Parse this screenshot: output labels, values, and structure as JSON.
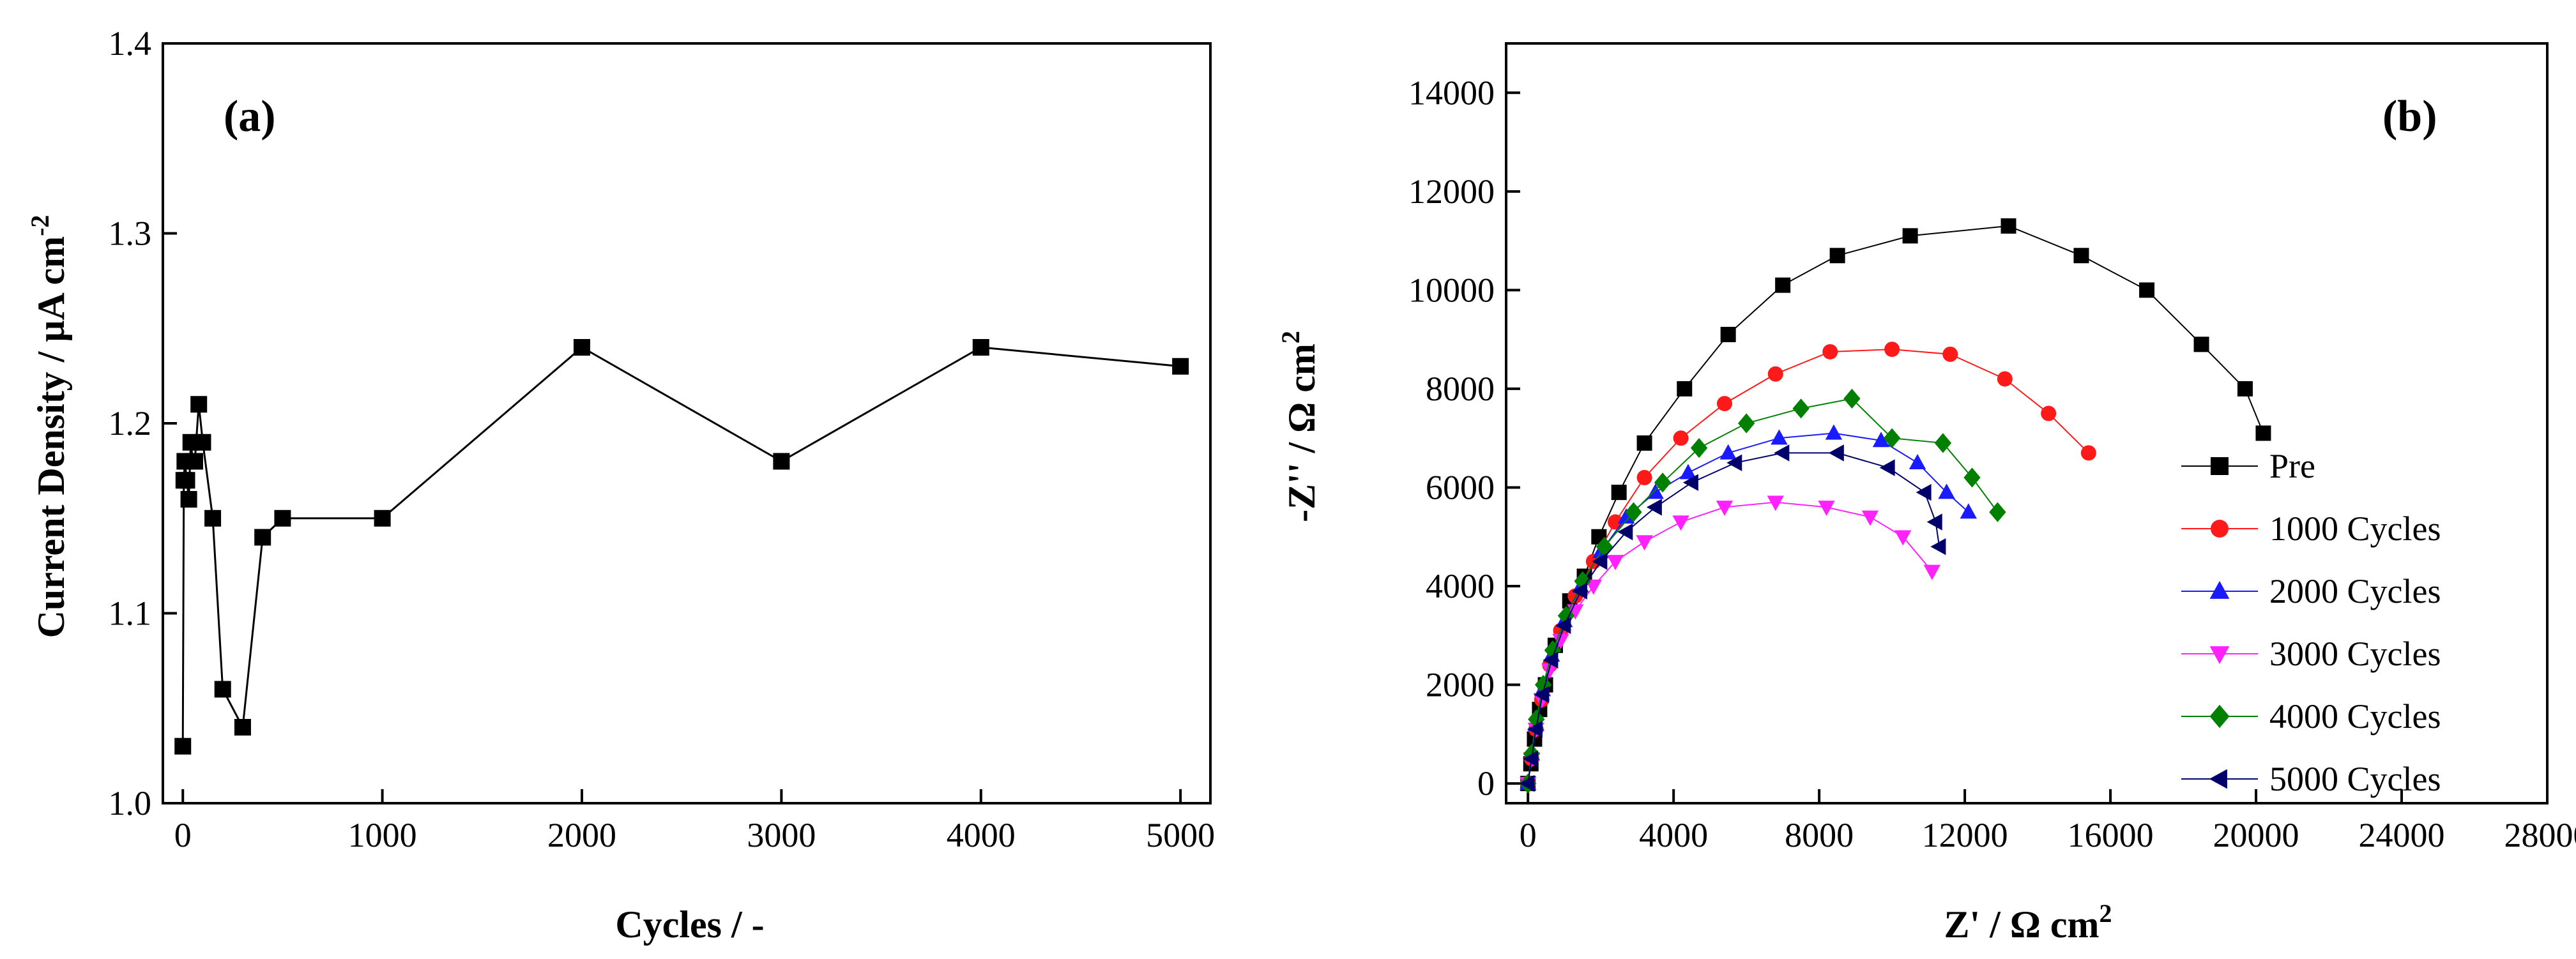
{
  "figure_title": "",
  "colors": {
    "pre": "#000000",
    "c1000": "#ff1a1a",
    "c2000": "#1a1aff",
    "c3000": "#ff22ff",
    "c4000": "#008000",
    "c5000": "#00006b"
  },
  "chart_data": [
    {
      "panel": "(a)",
      "type": "line",
      "title": "",
      "xlabel": "Cycles / -",
      "ylabel_main": "Current Density  / μA cm",
      "ylabel_sup": "-2",
      "xlim": [
        -100,
        5150
      ],
      "ylim": [
        1.0,
        1.4
      ],
      "xticks": [
        "0",
        "1000",
        "2000",
        "3000",
        "4000",
        "5000"
      ],
      "yticks": [
        "1.0",
        "1.1",
        "1.2",
        "1.3",
        "1.4"
      ],
      "grid": false,
      "marker": "square",
      "color": "#000000",
      "points": [
        {
          "x": 0,
          "y": 1.03
        },
        {
          "x": 5,
          "y": 1.17
        },
        {
          "x": 10,
          "y": 1.18
        },
        {
          "x": 20,
          "y": 1.17
        },
        {
          "x": 30,
          "y": 1.16
        },
        {
          "x": 40,
          "y": 1.19
        },
        {
          "x": 50,
          "y": 1.18
        },
        {
          "x": 60,
          "y": 1.18
        },
        {
          "x": 80,
          "y": 1.21
        },
        {
          "x": 100,
          "y": 1.19
        },
        {
          "x": 150,
          "y": 1.15
        },
        {
          "x": 200,
          "y": 1.06
        },
        {
          "x": 300,
          "y": 1.04
        },
        {
          "x": 400,
          "y": 1.14
        },
        {
          "x": 500,
          "y": 1.15
        },
        {
          "x": 1000,
          "y": 1.15
        },
        {
          "x": 2000,
          "y": 1.24
        },
        {
          "x": 3000,
          "y": 1.18
        },
        {
          "x": 4000,
          "y": 1.24
        },
        {
          "x": 5000,
          "y": 1.23
        }
      ]
    },
    {
      "panel": "(b)",
      "type": "scatter",
      "title": "",
      "xlabel_main": "Z' / Ω cm",
      "xlabel_sup": "2",
      "ylabel_main": "-Z'' / Ω cm",
      "ylabel_sup": "2",
      "xlim": [
        -600,
        28000
      ],
      "ylim": [
        -400,
        15000
      ],
      "xticks": [
        "0",
        "4000",
        "8000",
        "12000",
        "16000",
        "20000",
        "24000",
        "28000"
      ],
      "yticks": [
        "0",
        "2000",
        "4000",
        "6000",
        "8000",
        "10000",
        "12000",
        "14000"
      ],
      "grid": false,
      "legend_position": "right",
      "series": [
        {
          "name": "Pre",
          "marker": "square",
          "color_key": "pre",
          "points": [
            [
              0,
              0
            ],
            [
              80,
              400
            ],
            [
              180,
              900
            ],
            [
              320,
              1500
            ],
            [
              480,
              2000
            ],
            [
              750,
              2800
            ],
            [
              1150,
              3700
            ],
            [
              1550,
              4200
            ],
            [
              1950,
              5000
            ],
            [
              2500,
              5900
            ],
            [
              3200,
              6900
            ],
            [
              4300,
              8000
            ],
            [
              5500,
              9100
            ],
            [
              7000,
              10100
            ],
            [
              8500,
              10700
            ],
            [
              10500,
              11100
            ],
            [
              13200,
              11300
            ],
            [
              15200,
              10700
            ],
            [
              17000,
              10000
            ],
            [
              18500,
              8900
            ],
            [
              19700,
              8000
            ],
            [
              20200,
              7100
            ]
          ]
        },
        {
          "name": "1000 Cycles",
          "marker": "circle",
          "color_key": "c1000",
          "points": [
            [
              0,
              0
            ],
            [
              100,
              500
            ],
            [
              220,
              1100
            ],
            [
              380,
              1700
            ],
            [
              600,
              2400
            ],
            [
              900,
              3100
            ],
            [
              1300,
              3800
            ],
            [
              1800,
              4500
            ],
            [
              2400,
              5300
            ],
            [
              3200,
              6200
            ],
            [
              4200,
              7000
            ],
            [
              5400,
              7700
            ],
            [
              6800,
              8300
            ],
            [
              8300,
              8750
            ],
            [
              10000,
              8800
            ],
            [
              11600,
              8700
            ],
            [
              13100,
              8200
            ],
            [
              14300,
              7500
            ],
            [
              15400,
              6700
            ]
          ]
        },
        {
          "name": "2000 Cycles",
          "marker": "triangle-up",
          "color_key": "c2000",
          "points": [
            [
              0,
              0
            ],
            [
              100,
              600
            ],
            [
              220,
              1200
            ],
            [
              400,
              1900
            ],
            [
              650,
              2600
            ],
            [
              1000,
              3300
            ],
            [
              1450,
              4000
            ],
            [
              2000,
              4700
            ],
            [
              2700,
              5400
            ],
            [
              3500,
              5900
            ],
            [
              4400,
              6300
            ],
            [
              5500,
              6700
            ],
            [
              6900,
              7000
            ],
            [
              8400,
              7100
            ],
            [
              9700,
              6950
            ],
            [
              10700,
              6500
            ],
            [
              11500,
              5900
            ],
            [
              12100,
              5500
            ]
          ]
        },
        {
          "name": "3000 Cycles",
          "marker": "triangle-down",
          "color_key": "c3000",
          "points": [
            [
              0,
              0
            ],
            [
              100,
              500
            ],
            [
              220,
              1100
            ],
            [
              380,
              1700
            ],
            [
              600,
              2300
            ],
            [
              900,
              2900
            ],
            [
              1300,
              3500
            ],
            [
              1800,
              4000
            ],
            [
              2400,
              4500
            ],
            [
              3200,
              4900
            ],
            [
              4200,
              5300
            ],
            [
              5400,
              5600
            ],
            [
              6800,
              5700
            ],
            [
              8200,
              5600
            ],
            [
              9400,
              5400
            ],
            [
              10300,
              5000
            ],
            [
              11100,
              4300
            ]
          ]
        },
        {
          "name": "4000 Cycles",
          "marker": "diamond",
          "color_key": "c4000",
          "points": [
            [
              0,
              0
            ],
            [
              100,
              600
            ],
            [
              230,
              1300
            ],
            [
              420,
              2000
            ],
            [
              680,
              2700
            ],
            [
              1050,
              3400
            ],
            [
              1500,
              4100
            ],
            [
              2100,
              4800
            ],
            [
              2900,
              5500
            ],
            [
              3700,
              6100
            ],
            [
              4700,
              6800
            ],
            [
              6000,
              7300
            ],
            [
              7500,
              7600
            ],
            [
              8900,
              7800
            ],
            [
              10000,
              7000
            ],
            [
              11400,
              6900
            ],
            [
              12200,
              6200
            ],
            [
              12900,
              5500
            ]
          ]
        },
        {
          "name": "5000 Cycles",
          "marker": "triangle-left",
          "color_key": "c5000",
          "points": [
            [
              0,
              0
            ],
            [
              100,
              500
            ],
            [
              220,
              1100
            ],
            [
              400,
              1800
            ],
            [
              650,
              2500
            ],
            [
              1000,
              3200
            ],
            [
              1450,
              3900
            ],
            [
              2000,
              4500
            ],
            [
              2700,
              5100
            ],
            [
              3500,
              5600
            ],
            [
              4500,
              6100
            ],
            [
              5700,
              6500
            ],
            [
              7000,
              6700
            ],
            [
              8500,
              6700
            ],
            [
              9900,
              6400
            ],
            [
              10900,
              5900
            ],
            [
              11200,
              5300
            ],
            [
              11300,
              4800
            ]
          ]
        }
      ]
    }
  ]
}
